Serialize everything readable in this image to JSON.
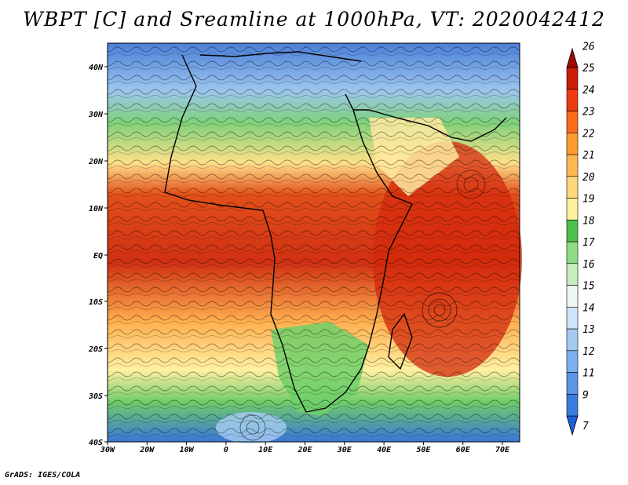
{
  "title": "WBPT [C] and Sreamline at 1000hPa, VT: 2020042412",
  "footer": "GrADS: IGES/COLA",
  "map": {
    "lon_labels": [
      "30W",
      "20W",
      "10W",
      "0",
      "10E",
      "20E",
      "30E",
      "40E",
      "50E",
      "60E",
      "70E"
    ],
    "lat_labels": [
      "40N",
      "30N",
      "20N",
      "10N",
      "EQ",
      "10S",
      "20S",
      "30S",
      "40S"
    ]
  },
  "colorbar": {
    "levels": [
      "7",
      "9",
      "11",
      "12",
      "13",
      "14",
      "15",
      "16",
      "17",
      "18",
      "19",
      "20",
      "21",
      "22",
      "23",
      "24",
      "25",
      "26"
    ],
    "colors": [
      "#1f5fd6",
      "#3a7be0",
      "#5a95e8",
      "#7eb0ef",
      "#a4caf4",
      "#cfe4fa",
      "#eef8f0",
      "#c6ecc0",
      "#8fdc86",
      "#4cbf4c",
      "#fff0a0",
      "#ffd77a",
      "#ffb84f",
      "#ff9a30",
      "#ff6a1a",
      "#ee3a10",
      "#cc1a08",
      "#a00a00"
    ]
  }
}
